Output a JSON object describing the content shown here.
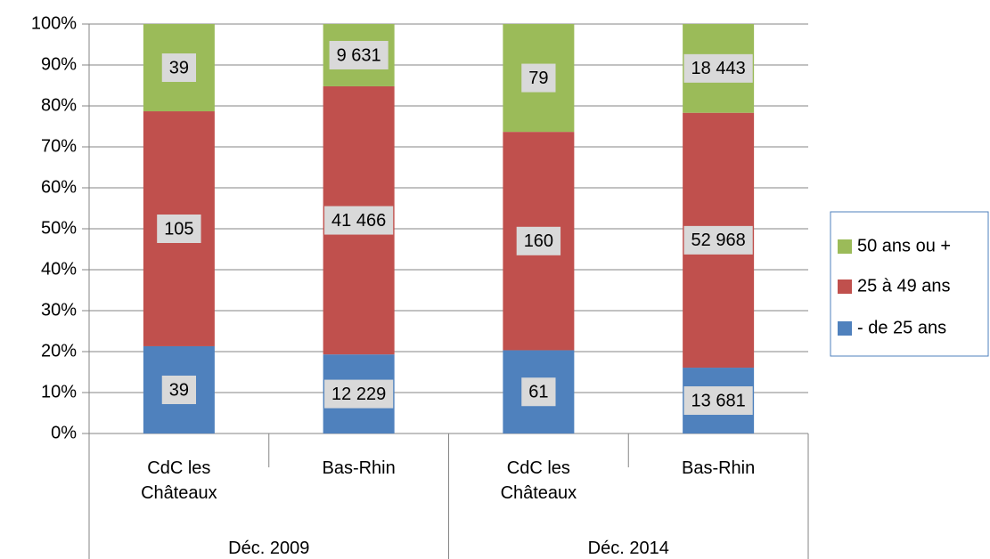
{
  "chart_data": {
    "type": "stacked_percent",
    "categories": [
      "CdC les Châteaux",
      "Bas-Rhin",
      "CdC les Châteaux",
      "Bas-Rhin"
    ],
    "groups": [
      "Déc. 2009",
      "Déc. 2014"
    ],
    "series": [
      {
        "name": "- de 25 ans",
        "color": "#4f81bd",
        "values": [
          39,
          12229,
          61,
          13681
        ],
        "value_labels": [
          "39",
          "12 229",
          "61",
          "13 681"
        ]
      },
      {
        "name": "25 à 49 ans",
        "color": "#c0504d",
        "values": [
          105,
          41466,
          160,
          52968
        ],
        "value_labels": [
          "105",
          "41 466",
          "160",
          "52 968"
        ]
      },
      {
        "name": "50 ans ou +",
        "color": "#9bbb59",
        "values": [
          39,
          9631,
          79,
          18443
        ],
        "value_labels": [
          "39",
          "9 631",
          "79",
          "18 443"
        ]
      }
    ],
    "ylim": [
      0,
      100
    ],
    "yticks": [
      {
        "value": 0,
        "label": "0%"
      },
      {
        "value": 10,
        "label": "10%"
      },
      {
        "value": 20,
        "label": "20%"
      },
      {
        "value": 30,
        "label": "30%"
      },
      {
        "value": 40,
        "label": "40%"
      },
      {
        "value": 50,
        "label": "50%"
      },
      {
        "value": 60,
        "label": "60%"
      },
      {
        "value": 70,
        "label": "70%"
      },
      {
        "value": 80,
        "label": "80%"
      },
      {
        "value": 90,
        "label": "90%"
      },
      {
        "value": 100,
        "label": "100%"
      }
    ],
    "grid": true,
    "legend": "right"
  }
}
